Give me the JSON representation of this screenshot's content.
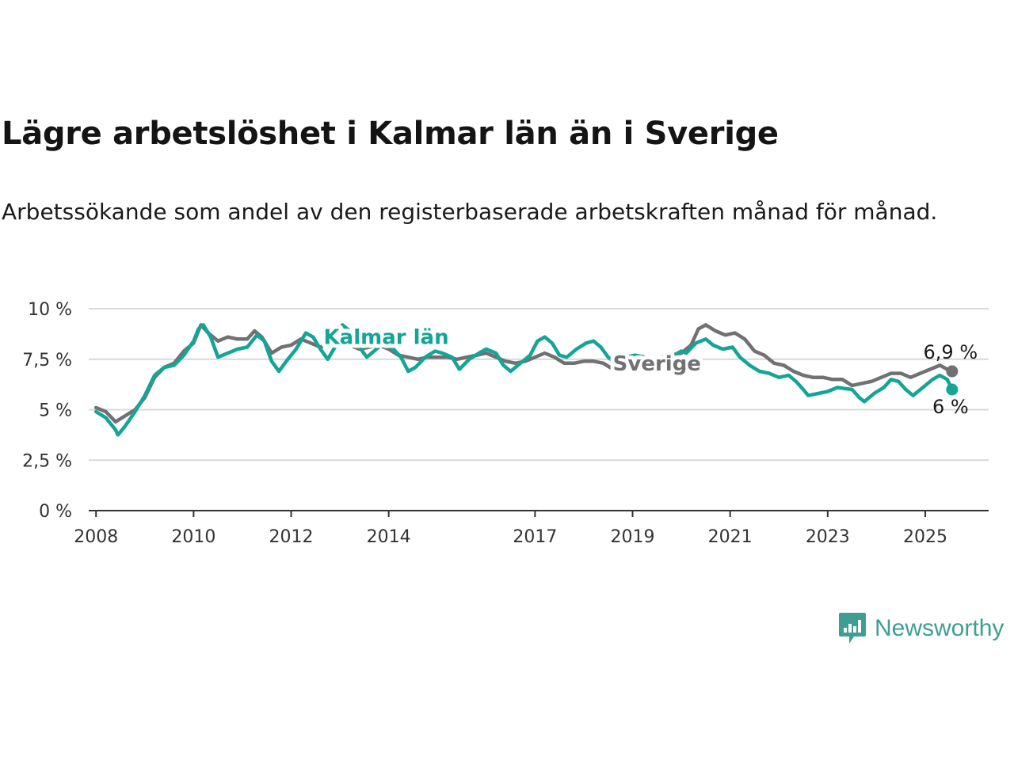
{
  "title": "Lägre arbetslöshet i Kalmar län än i Sverige",
  "subtitle": "Arbetssökande som andel av den registerbaserade arbetskraften månad för månad.",
  "brand": {
    "name": "Newsworthy",
    "icon": "newsworthy-logo-icon",
    "color": "#3f9e93"
  },
  "chart_data": {
    "type": "line",
    "title": "Lägre arbetslöshet i Kalmar län än i Sverige",
    "subtitle": "Arbetssökande som andel av den registerbaserade arbetskraften månad för månad.",
    "xlabel": "",
    "ylabel": "",
    "xlim": [
      2007.85,
      2026.3
    ],
    "ylim": [
      0,
      10
    ],
    "y_ticks": [
      0,
      2.5,
      5,
      7.5,
      10
    ],
    "y_tick_labels": [
      "0 %",
      "2,5 %",
      "5 %",
      "7,5 %",
      "10 %"
    ],
    "x_ticks": [
      2008,
      2010,
      2012,
      2014,
      2017,
      2019,
      2021,
      2023,
      2025
    ],
    "x_tick_labels": [
      "2008",
      "2010",
      "2012",
      "2014",
      "2017",
      "2019",
      "2021",
      "2023",
      "2025"
    ],
    "grid": "horizontal",
    "series": [
      {
        "name": "Sverige",
        "color": "#717073",
        "end_label": "6,9 %",
        "points": [
          [
            2008.0,
            5.1
          ],
          [
            2008.2,
            4.9
          ],
          [
            2008.4,
            4.4
          ],
          [
            2008.6,
            4.7
          ],
          [
            2008.8,
            5.0
          ],
          [
            2009.0,
            5.6
          ],
          [
            2009.2,
            6.6
          ],
          [
            2009.4,
            7.1
          ],
          [
            2009.6,
            7.3
          ],
          [
            2009.8,
            7.9
          ],
          [
            2010.0,
            8.3
          ],
          [
            2010.15,
            9.2
          ],
          [
            2010.3,
            8.8
          ],
          [
            2010.5,
            8.4
          ],
          [
            2010.7,
            8.6
          ],
          [
            2010.9,
            8.5
          ],
          [
            2011.1,
            8.5
          ],
          [
            2011.25,
            8.9
          ],
          [
            2011.4,
            8.6
          ],
          [
            2011.6,
            7.8
          ],
          [
            2011.8,
            8.1
          ],
          [
            2012.0,
            8.2
          ],
          [
            2012.2,
            8.5
          ],
          [
            2012.4,
            8.3
          ],
          [
            2012.6,
            8.1
          ],
          [
            2012.8,
            8.3
          ],
          [
            2013.0,
            8.5
          ],
          [
            2013.2,
            8.2
          ],
          [
            2013.4,
            8.0
          ],
          [
            2013.6,
            8.1
          ],
          [
            2013.8,
            8.2
          ],
          [
            2014.0,
            8.0
          ],
          [
            2014.2,
            7.7
          ],
          [
            2014.4,
            7.6
          ],
          [
            2014.6,
            7.5
          ],
          [
            2014.8,
            7.6
          ],
          [
            2015.0,
            7.6
          ],
          [
            2015.2,
            7.6
          ],
          [
            2015.4,
            7.5
          ],
          [
            2015.6,
            7.6
          ],
          [
            2015.8,
            7.7
          ],
          [
            2016.0,
            7.8
          ],
          [
            2016.2,
            7.6
          ],
          [
            2016.4,
            7.4
          ],
          [
            2016.6,
            7.3
          ],
          [
            2016.8,
            7.4
          ],
          [
            2017.0,
            7.6
          ],
          [
            2017.2,
            7.8
          ],
          [
            2017.4,
            7.6
          ],
          [
            2017.6,
            7.3
          ],
          [
            2017.8,
            7.3
          ],
          [
            2018.0,
            7.4
          ],
          [
            2018.2,
            7.4
          ],
          [
            2018.4,
            7.3
          ],
          [
            2018.6,
            7.0
          ],
          [
            2018.8,
            6.9
          ],
          [
            2019.0,
            7.1
          ],
          [
            2019.2,
            7.3
          ],
          [
            2019.4,
            7.5
          ],
          [
            2019.6,
            7.6
          ],
          [
            2019.8,
            7.7
          ],
          [
            2020.0,
            7.8
          ],
          [
            2020.2,
            8.2
          ],
          [
            2020.35,
            9.0
          ],
          [
            2020.5,
            9.2
          ],
          [
            2020.7,
            8.9
          ],
          [
            2020.9,
            8.7
          ],
          [
            2021.1,
            8.8
          ],
          [
            2021.3,
            8.5
          ],
          [
            2021.5,
            7.9
          ],
          [
            2021.7,
            7.7
          ],
          [
            2021.9,
            7.3
          ],
          [
            2022.1,
            7.2
          ],
          [
            2022.3,
            6.9
          ],
          [
            2022.5,
            6.7
          ],
          [
            2022.7,
            6.6
          ],
          [
            2022.9,
            6.6
          ],
          [
            2023.1,
            6.5
          ],
          [
            2023.3,
            6.5
          ],
          [
            2023.5,
            6.2
          ],
          [
            2023.7,
            6.3
          ],
          [
            2023.9,
            6.4
          ],
          [
            2024.1,
            6.6
          ],
          [
            2024.3,
            6.8
          ],
          [
            2024.5,
            6.8
          ],
          [
            2024.7,
            6.6
          ],
          [
            2024.9,
            6.8
          ],
          [
            2025.1,
            7.0
          ],
          [
            2025.3,
            7.2
          ],
          [
            2025.45,
            7.0
          ],
          [
            2025.55,
            6.9
          ]
        ]
      },
      {
        "name": "Kalmar län",
        "color": "#14a596",
        "end_label": "6 %",
        "points": [
          [
            2008.0,
            4.9
          ],
          [
            2008.2,
            4.6
          ],
          [
            2008.4,
            4.0
          ],
          [
            2008.45,
            3.75
          ],
          [
            2008.6,
            4.2
          ],
          [
            2008.8,
            4.9
          ],
          [
            2009.0,
            5.7
          ],
          [
            2009.2,
            6.7
          ],
          [
            2009.4,
            7.1
          ],
          [
            2009.6,
            7.2
          ],
          [
            2009.8,
            7.7
          ],
          [
            2010.0,
            8.4
          ],
          [
            2010.1,
            9.0
          ],
          [
            2010.2,
            9.2
          ],
          [
            2010.35,
            8.6
          ],
          [
            2010.5,
            7.6
          ],
          [
            2010.7,
            7.8
          ],
          [
            2010.9,
            8.0
          ],
          [
            2011.1,
            8.1
          ],
          [
            2011.3,
            8.7
          ],
          [
            2011.45,
            8.4
          ],
          [
            2011.6,
            7.4
          ],
          [
            2011.75,
            6.9
          ],
          [
            2011.9,
            7.4
          ],
          [
            2012.1,
            8.0
          ],
          [
            2012.3,
            8.8
          ],
          [
            2012.45,
            8.6
          ],
          [
            2012.6,
            8.0
          ],
          [
            2012.75,
            7.5
          ],
          [
            2012.95,
            8.3
          ],
          [
            2013.05,
            9.2
          ],
          [
            2013.2,
            8.9
          ],
          [
            2013.4,
            8.1
          ],
          [
            2013.55,
            7.6
          ],
          [
            2013.7,
            7.9
          ],
          [
            2013.9,
            8.3
          ],
          [
            2014.1,
            8.0
          ],
          [
            2014.25,
            7.6
          ],
          [
            2014.4,
            6.9
          ],
          [
            2014.55,
            7.1
          ],
          [
            2014.75,
            7.6
          ],
          [
            2014.95,
            7.9
          ],
          [
            2015.1,
            7.8
          ],
          [
            2015.3,
            7.6
          ],
          [
            2015.45,
            7.0
          ],
          [
            2015.65,
            7.5
          ],
          [
            2015.85,
            7.8
          ],
          [
            2016.0,
            8.0
          ],
          [
            2016.2,
            7.8
          ],
          [
            2016.35,
            7.2
          ],
          [
            2016.5,
            6.9
          ],
          [
            2016.7,
            7.3
          ],
          [
            2016.9,
            7.7
          ],
          [
            2017.05,
            8.4
          ],
          [
            2017.2,
            8.6
          ],
          [
            2017.35,
            8.3
          ],
          [
            2017.5,
            7.7
          ],
          [
            2017.65,
            7.6
          ],
          [
            2017.85,
            8.0
          ],
          [
            2018.05,
            8.3
          ],
          [
            2018.2,
            8.4
          ],
          [
            2018.35,
            8.1
          ],
          [
            2018.5,
            7.6
          ],
          [
            2018.65,
            7.3
          ],
          [
            2018.85,
            7.6
          ],
          [
            2019.05,
            7.7
          ],
          [
            2019.25,
            7.6
          ],
          [
            2019.45,
            7.4
          ],
          [
            2019.65,
            7.5
          ],
          [
            2019.85,
            7.7
          ],
          [
            2020.0,
            7.9
          ],
          [
            2020.1,
            7.8
          ],
          [
            2020.3,
            8.3
          ],
          [
            2020.5,
            8.5
          ],
          [
            2020.65,
            8.2
          ],
          [
            2020.85,
            8.0
          ],
          [
            2021.05,
            8.1
          ],
          [
            2021.2,
            7.6
          ],
          [
            2021.4,
            7.2
          ],
          [
            2021.6,
            6.9
          ],
          [
            2021.8,
            6.8
          ],
          [
            2022.0,
            6.6
          ],
          [
            2022.2,
            6.7
          ],
          [
            2022.35,
            6.4
          ],
          [
            2022.5,
            6.0
          ],
          [
            2022.6,
            5.7
          ],
          [
            2022.8,
            5.8
          ],
          [
            2023.0,
            5.9
          ],
          [
            2023.2,
            6.1
          ],
          [
            2023.5,
            6.0
          ],
          [
            2023.65,
            5.6
          ],
          [
            2023.75,
            5.4
          ],
          [
            2023.95,
            5.8
          ],
          [
            2024.15,
            6.1
          ],
          [
            2024.3,
            6.5
          ],
          [
            2024.45,
            6.4
          ],
          [
            2024.6,
            6.0
          ],
          [
            2024.75,
            5.7
          ],
          [
            2024.95,
            6.1
          ],
          [
            2025.15,
            6.5
          ],
          [
            2025.3,
            6.7
          ],
          [
            2025.45,
            6.5
          ],
          [
            2025.55,
            6.0
          ]
        ]
      }
    ]
  }
}
